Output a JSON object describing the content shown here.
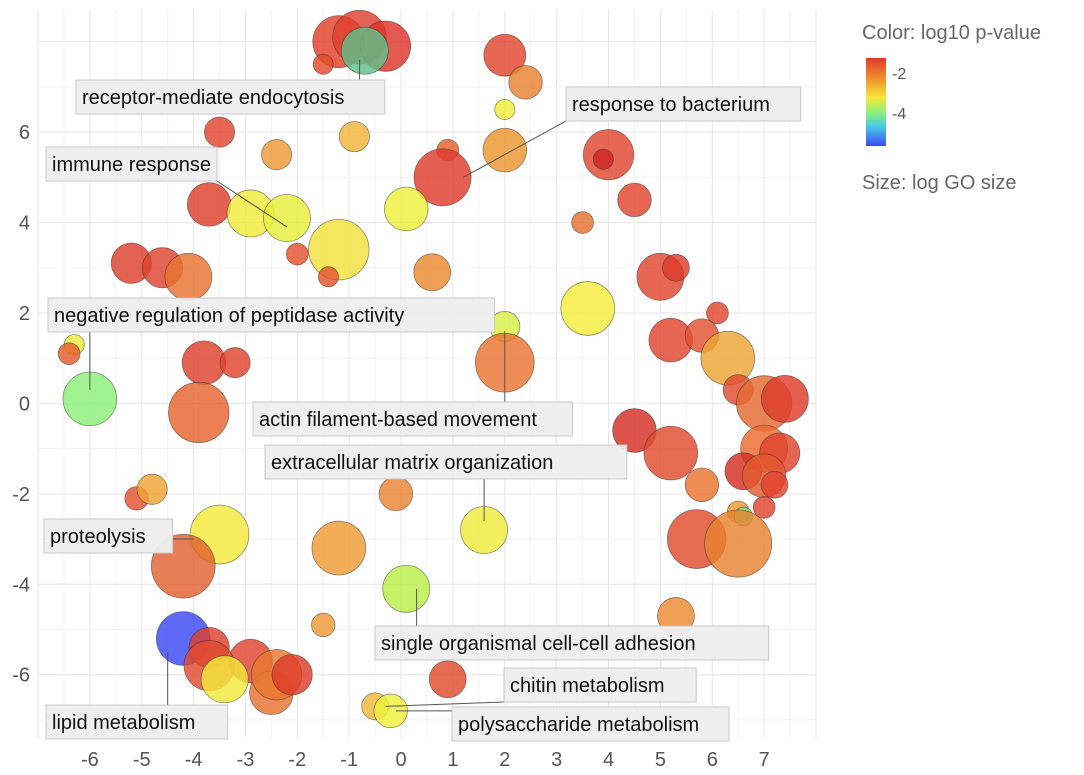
{
  "chart_data": {
    "type": "scatter",
    "title": "",
    "xlabel": "",
    "ylabel": "",
    "xlim": [
      -7,
      8
    ],
    "ylim": [
      -7.4,
      8.7
    ],
    "xticks": [
      -6,
      -5,
      -4,
      -3,
      -2,
      -1,
      0,
      1,
      2,
      3,
      4,
      5,
      6,
      7
    ],
    "yticks": [
      -6,
      -4,
      -2,
      0,
      2,
      4,
      6
    ],
    "grid": true,
    "legend_position": "right",
    "color_legend": {
      "title": "Color: log10 p-value",
      "ticks": [
        "-2",
        "-4"
      ]
    },
    "size_legend": {
      "title": "Size: log GO size"
    },
    "points": [
      {
        "x": -1.2,
        "y": 8.0,
        "size": 6.2,
        "color": "#e2412a"
      },
      {
        "x": -0.8,
        "y": 8.1,
        "size": 6.4,
        "color": "#df3f2e"
      },
      {
        "x": -0.3,
        "y": 7.9,
        "size": 6.0,
        "color": "#dd3528"
      },
      {
        "x": -0.7,
        "y": 7.8,
        "size": 5.6,
        "color": "#5fbf8a"
      },
      {
        "x": -1.5,
        "y": 7.5,
        "size": 2.4,
        "color": "#e24a2a"
      },
      {
        "x": 2.0,
        "y": 7.7,
        "size": 5.0,
        "color": "#e0432d"
      },
      {
        "x": 2.4,
        "y": 7.1,
        "size": 4.0,
        "color": "#e8822f"
      },
      {
        "x": 2.0,
        "y": 6.5,
        "size": 2.4,
        "color": "#f2ee3c"
      },
      {
        "x": -3.5,
        "y": 6.0,
        "size": 3.6,
        "color": "#e2452e"
      },
      {
        "x": -0.9,
        "y": 5.9,
        "size": 3.6,
        "color": "#f0b43a"
      },
      {
        "x": 2.0,
        "y": 5.6,
        "size": 5.2,
        "color": "#ec962f"
      },
      {
        "x": 0.9,
        "y": 5.6,
        "size": 2.6,
        "color": "#e6602d"
      },
      {
        "x": 4.0,
        "y": 5.5,
        "size": 6.0,
        "color": "#e0452e"
      },
      {
        "x": 3.9,
        "y": 5.4,
        "size": 2.4,
        "color": "#cc2525"
      },
      {
        "x": -2.4,
        "y": 5.5,
        "size": 3.6,
        "color": "#ee9a34"
      },
      {
        "x": 0.8,
        "y": 5.0,
        "size": 6.8,
        "color": "#de3c2b"
      },
      {
        "x": 4.5,
        "y": 4.5,
        "size": 4.0,
        "color": "#e2452e"
      },
      {
        "x": -3.7,
        "y": 4.4,
        "size": 5.2,
        "color": "#de402c"
      },
      {
        "x": -2.9,
        "y": 4.2,
        "size": 5.6,
        "color": "#f2ec3b"
      },
      {
        "x": -2.2,
        "y": 4.1,
        "size": 5.6,
        "color": "#e8ef3a"
      },
      {
        "x": 0.1,
        "y": 4.3,
        "size": 5.2,
        "color": "#eef23c"
      },
      {
        "x": 3.5,
        "y": 4.0,
        "size": 2.6,
        "color": "#e6702f"
      },
      {
        "x": -1.2,
        "y": 3.4,
        "size": 7.2,
        "color": "#f2e03c"
      },
      {
        "x": -2.0,
        "y": 3.3,
        "size": 2.6,
        "color": "#e2502c"
      },
      {
        "x": -5.2,
        "y": 3.1,
        "size": 4.8,
        "color": "#de402c"
      },
      {
        "x": -4.6,
        "y": 3.0,
        "size": 4.8,
        "color": "#df432e"
      },
      {
        "x": -4.1,
        "y": 2.8,
        "size": 5.6,
        "color": "#e8722f"
      },
      {
        "x": -1.4,
        "y": 2.8,
        "size": 2.4,
        "color": "#e4562d"
      },
      {
        "x": 0.6,
        "y": 2.9,
        "size": 4.4,
        "color": "#ec8a30"
      },
      {
        "x": 5.0,
        "y": 2.8,
        "size": 5.6,
        "color": "#e0462d"
      },
      {
        "x": 5.3,
        "y": 3.0,
        "size": 3.2,
        "color": "#dd3c2a"
      },
      {
        "x": 3.6,
        "y": 2.1,
        "size": 6.4,
        "color": "#f5ee3c"
      },
      {
        "x": 6.1,
        "y": 2.0,
        "size": 2.6,
        "color": "#e2452e"
      },
      {
        "x": 2.0,
        "y": 1.7,
        "size": 3.6,
        "color": "#d6ef46"
      },
      {
        "x": 5.2,
        "y": 1.4,
        "size": 5.2,
        "color": "#e0432d"
      },
      {
        "x": 5.8,
        "y": 1.5,
        "size": 4.0,
        "color": "#e2522e"
      },
      {
        "x": 6.3,
        "y": 1.0,
        "size": 6.4,
        "color": "#eea534"
      },
      {
        "x": -6.3,
        "y": 1.3,
        "size": 2.4,
        "color": "#e8ef3a"
      },
      {
        "x": -6.4,
        "y": 1.1,
        "size": 2.6,
        "color": "#e45c2d"
      },
      {
        "x": -3.8,
        "y": 0.9,
        "size": 5.2,
        "color": "#de402c"
      },
      {
        "x": -3.2,
        "y": 0.9,
        "size": 3.6,
        "color": "#e0432d"
      },
      {
        "x": 2.0,
        "y": 0.9,
        "size": 7.0,
        "color": "#ea742f"
      },
      {
        "x": 6.5,
        "y": 0.3,
        "size": 3.6,
        "color": "#e04a2d"
      },
      {
        "x": -6.0,
        "y": 0.1,
        "size": 6.4,
        "color": "#8cf07a"
      },
      {
        "x": -3.9,
        "y": -0.2,
        "size": 7.2,
        "color": "#e6642e"
      },
      {
        "x": 7.0,
        "y": 0.0,
        "size": 6.6,
        "color": "#e46a30"
      },
      {
        "x": 7.4,
        "y": 0.1,
        "size": 5.6,
        "color": "#de3c2a"
      },
      {
        "x": 4.5,
        "y": -0.6,
        "size": 5.2,
        "color": "#d42e25"
      },
      {
        "x": 5.2,
        "y": -1.1,
        "size": 6.4,
        "color": "#e04a2d"
      },
      {
        "x": 7.0,
        "y": -1.0,
        "size": 5.6,
        "color": "#ec6a2e"
      },
      {
        "x": 7.3,
        "y": -1.1,
        "size": 4.8,
        "color": "#e0432d"
      },
      {
        "x": 6.6,
        "y": -1.5,
        "size": 4.4,
        "color": "#d42e25"
      },
      {
        "x": 7.0,
        "y": -1.6,
        "size": 5.2,
        "color": "#e4582e"
      },
      {
        "x": 7.2,
        "y": -1.8,
        "size": 3.2,
        "color": "#e0432d"
      },
      {
        "x": 5.8,
        "y": -1.8,
        "size": 4.0,
        "color": "#ea7530"
      },
      {
        "x": 7.0,
        "y": -2.3,
        "size": 2.6,
        "color": "#e0432d"
      },
      {
        "x": -5.1,
        "y": -2.1,
        "size": 2.8,
        "color": "#e5522d"
      },
      {
        "x": -4.8,
        "y": -1.9,
        "size": 3.6,
        "color": "#f0a234"
      },
      {
        "x": -0.1,
        "y": -2.0,
        "size": 4.0,
        "color": "#ea8330"
      },
      {
        "x": 6.5,
        "y": -2.4,
        "size": 2.6,
        "color": "#ee9a34"
      },
      {
        "x": 6.6,
        "y": -2.5,
        "size": 2.2,
        "color": "#7fe87a"
      },
      {
        "x": 1.6,
        "y": -2.8,
        "size": 5.6,
        "color": "#f2ec3b"
      },
      {
        "x": -3.5,
        "y": -2.9,
        "size": 7.0,
        "color": "#f4ea3c"
      },
      {
        "x": 5.7,
        "y": -3.0,
        "size": 7.0,
        "color": "#e04a2d"
      },
      {
        "x": 6.5,
        "y": -3.1,
        "size": 8.0,
        "color": "#e8822f"
      },
      {
        "x": -1.2,
        "y": -3.2,
        "size": 6.4,
        "color": "#ef9b33"
      },
      {
        "x": -4.2,
        "y": -3.6,
        "size": 7.6,
        "color": "#e2602e"
      },
      {
        "x": 0.1,
        "y": -4.1,
        "size": 5.6,
        "color": "#b8ef46"
      },
      {
        "x": 5.3,
        "y": -4.7,
        "size": 4.4,
        "color": "#ec8a30"
      },
      {
        "x": -1.5,
        "y": -4.9,
        "size": 2.8,
        "color": "#ee9a34"
      },
      {
        "x": -4.2,
        "y": -5.2,
        "size": 6.4,
        "color": "#3b48f4"
      },
      {
        "x": -3.7,
        "y": -5.4,
        "size": 4.8,
        "color": "#de402c"
      },
      {
        "x": -2.9,
        "y": -5.7,
        "size": 5.2,
        "color": "#e0432d"
      },
      {
        "x": -3.7,
        "y": -5.8,
        "size": 6.0,
        "color": "#e14a2f"
      },
      {
        "x": -2.5,
        "y": -6.4,
        "size": 5.2,
        "color": "#e8722f"
      },
      {
        "x": -2.4,
        "y": -6.0,
        "size": 6.0,
        "color": "#e8772f"
      },
      {
        "x": -2.1,
        "y": -6.0,
        "size": 4.8,
        "color": "#de3c2a"
      },
      {
        "x": -3.4,
        "y": -6.1,
        "size": 5.6,
        "color": "#f2ea3b"
      },
      {
        "x": 0.9,
        "y": -6.1,
        "size": 4.4,
        "color": "#e04a2d"
      },
      {
        "x": -0.5,
        "y": -6.7,
        "size": 3.2,
        "color": "#f0b83a"
      },
      {
        "x": -0.2,
        "y": -6.8,
        "size": 4.0,
        "color": "#eef23c"
      }
    ],
    "annotations": [
      {
        "text": "receptor-mediate endocytosis",
        "point": [
          -0.8,
          7.6
        ]
      },
      {
        "text": "response to bacterium",
        "point": [
          1.2,
          5.0
        ]
      },
      {
        "text": "immune response",
        "point": [
          -2.2,
          3.9
        ]
      },
      {
        "text": "negative regulation of peptidase activity",
        "point": [
          -6.0,
          0.3
        ]
      },
      {
        "text": "actin filament-based movement",
        "point": [
          2.0,
          1.6
        ]
      },
      {
        "text": "extracellular matrix organization",
        "point": [
          1.6,
          -2.6
        ]
      },
      {
        "text": "proteolysis",
        "point": [
          -4.0,
          -3.0
        ]
      },
      {
        "text": "single organismal cell-cell adhesion",
        "point": [
          0.3,
          -4.1
        ]
      },
      {
        "text": "chitin metabolism",
        "point": [
          -0.3,
          -6.7
        ]
      },
      {
        "text": "lipid metabolism",
        "point": [
          -4.5,
          -5.5
        ]
      },
      {
        "text": "polysaccharide metabolism",
        "point": [
          -0.1,
          -6.8
        ]
      }
    ]
  }
}
